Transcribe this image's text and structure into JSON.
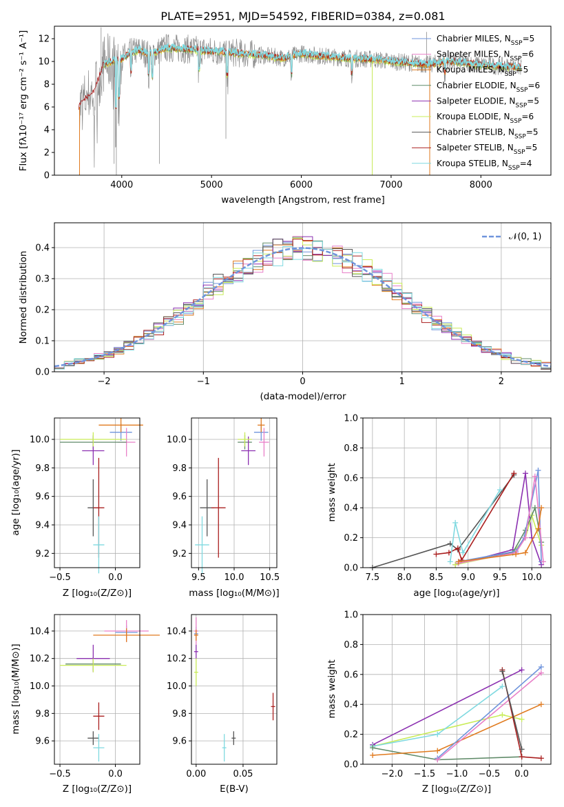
{
  "colors": {
    "chabrier_miles": "#6f94dc",
    "salpeter_miles": "#e87fc8",
    "kroupa_miles": "#e07a1e",
    "chabrier_elodie": "#5f8a68",
    "salpeter_elodie": "#8b2fb0",
    "kroupa_elodie": "#c9ec58",
    "chabrier_stelib": "#555555",
    "salpeter_stelib": "#aa1f1f",
    "kroupa_stelib": "#7fd9e0",
    "normal_curve": "#6f94dc",
    "spectrum_gray": "#8c8c8c"
  },
  "spectrum_panel": {
    "title": "PLATE=2951, MJD=54592, FIBERID=0384, z=0.081",
    "ylabel": "Flux [fλ10⁻¹⁷ erg cm⁻² s⁻¹ A⁻¹]",
    "xlabel": "wavelength [Angstrom, rest frame]",
    "xticks": [
      "4000",
      "5000",
      "6000",
      "7000",
      "8000"
    ],
    "yticks": [
      "0",
      "2",
      "4",
      "6",
      "8",
      "10",
      "12"
    ],
    "legend": [
      {
        "label": "Chabrier MILES, N",
        "sub": "SSP",
        "tail": "=5",
        "color_key": "chabrier_miles"
      },
      {
        "label": "Salpeter MILES, N",
        "sub": "SSP",
        "tail": "=6",
        "color_key": "salpeter_miles"
      },
      {
        "label": "Kroupa MILES, N",
        "sub": "SSP",
        "tail": "=5",
        "color_key": "kroupa_miles"
      },
      {
        "label": "Chabrier ELODIE, N",
        "sub": "SSP",
        "tail": "=6",
        "color_key": "chabrier_elodie"
      },
      {
        "label": "Salpeter ELODIE, N",
        "sub": "SSP",
        "tail": "=5",
        "color_key": "salpeter_elodie"
      },
      {
        "label": "Kroupa ELODIE, N",
        "sub": "SSP",
        "tail": "=6",
        "color_key": "kroupa_elodie"
      },
      {
        "label": "Chabrier STELIB, N",
        "sub": "SSP",
        "tail": "=5",
        "color_key": "chabrier_stelib"
      },
      {
        "label": "Salpeter STELIB, N",
        "sub": "SSP",
        "tail": "=5",
        "color_key": "salpeter_stelib"
      },
      {
        "label": "Kroupa STELIB, N",
        "sub": "SSP",
        "tail": "=4",
        "color_key": "kroupa_stelib"
      }
    ]
  },
  "hist_panel": {
    "ylabel": "Normed distribution",
    "xlabel": "(data-model)/error",
    "xticks": [
      "−2",
      "−1",
      "0",
      "1",
      "2"
    ],
    "yticks": [
      "0.0",
      "0.1",
      "0.2",
      "0.3",
      "0.4"
    ],
    "legend_label": "𝒩(0, 1)"
  },
  "age_vs_z": {
    "ylabel": "age  [log₁₀(age/yr)]",
    "xlabel": "Z [log₁₀(Z/Z⊙)]",
    "xticks": [
      "−0.5",
      "0.0"
    ],
    "yticks": [
      "9.2",
      "9.4",
      "9.6",
      "9.8",
      "10.0"
    ]
  },
  "age_vs_mass": {
    "xlabel": "mass [log₁₀(M/M⊙)]",
    "xticks": [
      "9.5",
      "10.0",
      "10.5"
    ],
    "yticks": [
      "9.2",
      "9.4",
      "9.6",
      "9.8",
      "10.0"
    ]
  },
  "weight_vs_age": {
    "ylabel": "mass weight",
    "xlabel": "age  [log₁₀(age/yr)]",
    "xticks": [
      "7.5",
      "8.0",
      "8.5",
      "9.0",
      "9.5",
      "10.0"
    ],
    "yticks": [
      "0.0",
      "0.2",
      "0.4",
      "0.6",
      "0.8",
      "1.0"
    ]
  },
  "mass_vs_z": {
    "ylabel": "mass [log₁₀(M/M⊙)]",
    "xlabel": "Z [log₁₀(Z/Z⊙)]",
    "xticks": [
      "−0.5",
      "0.0"
    ],
    "yticks": [
      "9.6",
      "9.8",
      "10.0",
      "10.2",
      "10.4"
    ]
  },
  "mass_vs_ebv": {
    "xlabel": "E(B-V)",
    "xticks": [
      "0.00",
      "0.05"
    ],
    "yticks": [
      "9.6",
      "9.8",
      "10.0",
      "10.2",
      "10.4"
    ]
  },
  "weight_vs_z": {
    "ylabel": "mass weight",
    "xlabel": "Z [log₁₀(Z/Z⊙)]",
    "xticks": [
      "−2.0",
      "−1.5",
      "−1.0",
      "−0.5",
      "0.0"
    ],
    "yticks": [
      "0.0",
      "0.2",
      "0.4",
      "0.6",
      "0.8",
      "1.0"
    ]
  },
  "chart_data": [
    {
      "type": "line",
      "title": "PLATE=2951, MJD=54592, FIBERID=0384, z=0.081",
      "xlabel": "wavelength [Angstrom, rest frame]",
      "ylabel": "Flux [fλ10⁻¹⁷ erg cm⁻² s⁻¹ A⁻¹]",
      "xlim": [
        3250,
        8780
      ],
      "ylim": [
        0,
        13.1
      ],
      "continuum": {
        "x": [
          3530,
          3600,
          3700,
          3800,
          3900,
          4000,
          4100,
          4200,
          4300,
          4500,
          4700,
          5000,
          5200,
          5500,
          5800,
          6000,
          6200,
          6500,
          6800,
          7000,
          7200,
          7400,
          7600,
          7800,
          8000,
          8200,
          8450
        ],
        "y": [
          6.0,
          6.8,
          7.5,
          9.8,
          10.0,
          10.2,
          10.8,
          11.0,
          10.6,
          11.2,
          11.1,
          10.9,
          10.8,
          10.6,
          10.3,
          10.7,
          10.5,
          10.3,
          10.2,
          10.0,
          9.9,
          9.7,
          10.0,
          9.9,
          9.7,
          9.6,
          9.5
        ]
      },
      "series": [
        {
          "name": "Chabrier MILES, NSSP=5"
        },
        {
          "name": "Salpeter MILES, NSSP=6"
        },
        {
          "name": "Kroupa MILES, NSSP=5"
        },
        {
          "name": "Chabrier ELODIE, NSSP=6"
        },
        {
          "name": "Salpeter ELODIE, NSSP=5"
        },
        {
          "name": "Kroupa ELODIE, NSSP=6"
        },
        {
          "name": "Chabrier STELIB, NSSP=5"
        },
        {
          "name": "Salpeter STELIB, NSSP=5"
        },
        {
          "name": "Kroupa STELIB, NSSP=4"
        }
      ]
    },
    {
      "type": "bar",
      "xlabel": "(data-model)/error",
      "ylabel": "Normed distribution",
      "xlim": [
        -2.5,
        2.5
      ],
      "ylim": [
        0,
        0.48
      ],
      "bin_width": 0.1,
      "gaussian": {
        "name": "𝒩(0, 1)",
        "mean": 0,
        "sigma": 1
      }
    },
    {
      "type": "scatter",
      "xlabel": "Z [log₁₀(Z/Z⊙)]",
      "ylabel": "age  [log₁₀(age/yr)]",
      "xlim": [
        -0.55,
        0.22
      ],
      "ylim": [
        9.1,
        10.15
      ],
      "points": [
        {
          "key": "chabrier_miles",
          "x": 0.05,
          "xerr": 0.1,
          "y": 10.05,
          "yerr": 0.06
        },
        {
          "key": "salpeter_miles",
          "x": 0.1,
          "xerr": 0.08,
          "y": 9.98,
          "yerr": 0.1
        },
        {
          "key": "kroupa_miles",
          "x": 0.05,
          "xerr": 0.2,
          "y": 10.1,
          "yerr": 0.05
        },
        {
          "key": "chabrier_elodie",
          "x": -0.2,
          "xerr": 0.3,
          "y": 9.98,
          "yerr": 0.05
        },
        {
          "key": "salpeter_elodie",
          "x": -0.2,
          "xerr": 0.1,
          "y": 9.92,
          "yerr": 0.1
        },
        {
          "key": "kroupa_elodie",
          "x": -0.2,
          "xerr": 0.3,
          "y": 10.0,
          "yerr": 0.05
        },
        {
          "key": "chabrier_stelib",
          "x": -0.2,
          "xerr": 0.05,
          "y": 9.52,
          "yerr": 0.2
        },
        {
          "key": "salpeter_stelib",
          "x": -0.15,
          "xerr": 0.05,
          "y": 9.52,
          "yerr": 0.35
        },
        {
          "key": "kroupa_stelib",
          "x": -0.15,
          "xerr": 0.05,
          "y": 9.26,
          "yerr": 0.2
        }
      ]
    },
    {
      "type": "scatter",
      "xlabel": "mass [log₁₀(M/M⊙)]",
      "xlim": [
        9.4,
        10.6
      ],
      "ylim": [
        9.1,
        10.15
      ],
      "points": [
        {
          "key": "chabrier_miles",
          "x": 10.38,
          "xerr": 0.1,
          "y": 10.05,
          "yerr": 0.06
        },
        {
          "key": "salpeter_miles",
          "x": 10.42,
          "xerr": 0.07,
          "y": 9.98,
          "yerr": 0.1
        },
        {
          "key": "kroupa_miles",
          "x": 10.38,
          "xerr": 0.05,
          "y": 10.1,
          "yerr": 0.05
        },
        {
          "key": "chabrier_elodie",
          "x": 10.15,
          "xerr": 0.1,
          "y": 9.98,
          "yerr": 0.05
        },
        {
          "key": "salpeter_elodie",
          "x": 10.2,
          "xerr": 0.1,
          "y": 9.92,
          "yerr": 0.1
        },
        {
          "key": "kroupa_elodie",
          "x": 10.15,
          "xerr": 0.1,
          "y": 10.0,
          "yerr": 0.05
        },
        {
          "key": "chabrier_stelib",
          "x": 9.62,
          "xerr": 0.1,
          "y": 9.52,
          "yerr": 0.2
        },
        {
          "key": "salpeter_stelib",
          "x": 9.78,
          "xerr": 0.1,
          "y": 9.52,
          "yerr": 0.35
        },
        {
          "key": "kroupa_stelib",
          "x": 9.55,
          "xerr": 0.1,
          "y": 9.26,
          "yerr": 0.2
        }
      ]
    },
    {
      "type": "line",
      "xlabel": "age  [log₁₀(age/yr)]",
      "ylabel": "mass weight",
      "xlim": [
        7.35,
        10.3
      ],
      "ylim": [
        0,
        1.0
      ],
      "series": [
        {
          "key": "chabrier_stelib",
          "x": [
            7.5,
            8.72,
            8.84,
            9.72
          ],
          "y": [
            0.0,
            0.16,
            0.12,
            0.62
          ]
        },
        {
          "key": "salpeter_stelib",
          "x": [
            8.5,
            8.7,
            8.84,
            8.9,
            9.72
          ],
          "y": [
            0.09,
            0.1,
            0.13,
            0.05,
            0.63
          ]
        },
        {
          "key": "kroupa_stelib",
          "x": [
            8.72,
            8.8,
            8.92,
            9.5
          ],
          "y": [
            0.04,
            0.3,
            0.1,
            0.52
          ]
        },
        {
          "key": "salpeter_elodie",
          "x": [
            8.8,
            9.7,
            9.9,
            10.0,
            10.15
          ],
          "y": [
            0.02,
            0.12,
            0.63,
            0.2,
            0.02
          ]
        },
        {
          "key": "kroupa_elodie",
          "x": [
            8.8,
            9.7,
            9.9,
            10.0,
            10.15
          ],
          "y": [
            0.02,
            0.1,
            0.2,
            0.35,
            0.15
          ]
        },
        {
          "key": "chabrier_elodie",
          "x": [
            8.85,
            9.7,
            9.9,
            10.05,
            10.15
          ],
          "y": [
            0.03,
            0.1,
            0.25,
            0.4,
            0.17
          ]
        },
        {
          "key": "chabrier_miles",
          "x": [
            8.85,
            9.75,
            9.88,
            10.1,
            10.15
          ],
          "y": [
            0.04,
            0.11,
            0.2,
            0.65,
            0.04
          ]
        },
        {
          "key": "salpeter_miles",
          "x": [
            8.85,
            9.75,
            9.9,
            10.05,
            10.18
          ],
          "y": [
            0.03,
            0.1,
            0.2,
            0.61,
            0.04
          ]
        },
        {
          "key": "kroupa_miles",
          "x": [
            8.85,
            9.75,
            9.9,
            10.1,
            10.15
          ],
          "y": [
            0.04,
            0.09,
            0.1,
            0.26,
            0.4
          ]
        }
      ]
    },
    {
      "type": "scatter",
      "xlabel": "Z [log₁₀(Z/Z⊙)]",
      "ylabel": "mass [log₁₀(M/M⊙)]",
      "xlim": [
        -0.55,
        0.22
      ],
      "ylim": [
        9.43,
        10.52
      ],
      "points": [
        {
          "key": "chabrier_miles",
          "x": 0.1,
          "xerr": 0.1,
          "y": 10.39,
          "yerr": 0.05
        },
        {
          "key": "salpeter_miles",
          "x": 0.1,
          "xerr": 0.2,
          "y": 10.4,
          "yerr": 0.08
        },
        {
          "key": "kroupa_miles",
          "x": 0.1,
          "xerr": 0.3,
          "y": 10.37,
          "yerr": 0.05
        },
        {
          "key": "chabrier_elodie",
          "x": -0.2,
          "xerr": 0.25,
          "y": 10.16,
          "yerr": 0.05
        },
        {
          "key": "salpeter_elodie",
          "x": -0.2,
          "xerr": 0.15,
          "y": 10.2,
          "yerr": 0.1
        },
        {
          "key": "kroupa_elodie",
          "x": -0.2,
          "xerr": 0.3,
          "y": 10.15,
          "yerr": 0.05
        },
        {
          "key": "chabrier_stelib",
          "x": -0.2,
          "xerr": 0.05,
          "y": 9.62,
          "yerr": 0.05
        },
        {
          "key": "salpeter_stelib",
          "x": -0.15,
          "xerr": 0.05,
          "y": 9.78,
          "yerr": 0.1
        },
        {
          "key": "kroupa_stelib",
          "x": -0.15,
          "xerr": 0.05,
          "y": 9.55,
          "yerr": 0.1
        }
      ]
    },
    {
      "type": "scatter",
      "xlabel": "E(B-V)",
      "xlim": [
        -0.005,
        0.086
      ],
      "ylim": [
        9.43,
        10.52
      ],
      "points": [
        {
          "key": "chabrier_miles",
          "x": 0.0,
          "y": 10.38,
          "yerr": 0.05
        },
        {
          "key": "salpeter_miles",
          "x": 0.0,
          "y": 10.4,
          "yerr": 0.1
        },
        {
          "key": "kroupa_miles",
          "x": 0.0,
          "y": 10.37,
          "yerr": 0.04
        },
        {
          "key": "salpeter_elodie",
          "x": 0.0,
          "y": 10.25,
          "yerr": 0.05
        },
        {
          "key": "kroupa_elodie",
          "x": 0.0,
          "y": 10.1,
          "yerr": 0.1
        },
        {
          "key": "chabrier_stelib",
          "x": 0.04,
          "y": 9.62,
          "yerr": 0.05
        },
        {
          "key": "salpeter_stelib",
          "x": 0.082,
          "y": 9.85,
          "yerr": 0.1
        },
        {
          "key": "kroupa_stelib",
          "x": 0.03,
          "y": 9.55,
          "yerr": 0.1
        }
      ]
    },
    {
      "type": "line",
      "xlabel": "Z [log₁₀(Z/Z⊙)]",
      "ylabel": "mass weight",
      "xlim": [
        -2.45,
        0.45
      ],
      "ylim": [
        0,
        1.0
      ],
      "series": [
        {
          "key": "salpeter_elodie",
          "x": [
            -2.3,
            0.0
          ],
          "y": [
            0.13,
            0.63
          ]
        },
        {
          "key": "kroupa_elodie",
          "x": [
            -2.3,
            -0.3,
            0.0
          ],
          "y": [
            0.12,
            0.33,
            0.3
          ]
        },
        {
          "key": "kroupa_stelib",
          "x": [
            -2.3,
            -1.3,
            -0.3
          ],
          "y": [
            0.12,
            0.2,
            0.52
          ]
        },
        {
          "key": "chabrier_elodie",
          "x": [
            -2.3,
            -1.3,
            0.0
          ],
          "y": [
            0.11,
            0.03,
            0.05
          ]
        },
        {
          "key": "kroupa_miles",
          "x": [
            -2.3,
            -1.3,
            0.3
          ],
          "y": [
            0.06,
            0.09,
            0.4
          ]
        },
        {
          "key": "chabrier_miles",
          "x": [
            -1.3,
            0.3
          ],
          "y": [
            0.04,
            0.65
          ]
        },
        {
          "key": "salpeter_miles",
          "x": [
            -1.3,
            0.3
          ],
          "y": [
            0.03,
            0.61
          ]
        },
        {
          "key": "salpeter_stelib",
          "x": [
            -0.3,
            0.0,
            0.3
          ],
          "y": [
            0.63,
            0.05,
            0.04
          ]
        },
        {
          "key": "chabrier_stelib",
          "x": [
            -0.3,
            0.0
          ],
          "y": [
            0.62,
            0.1
          ]
        }
      ]
    }
  ]
}
